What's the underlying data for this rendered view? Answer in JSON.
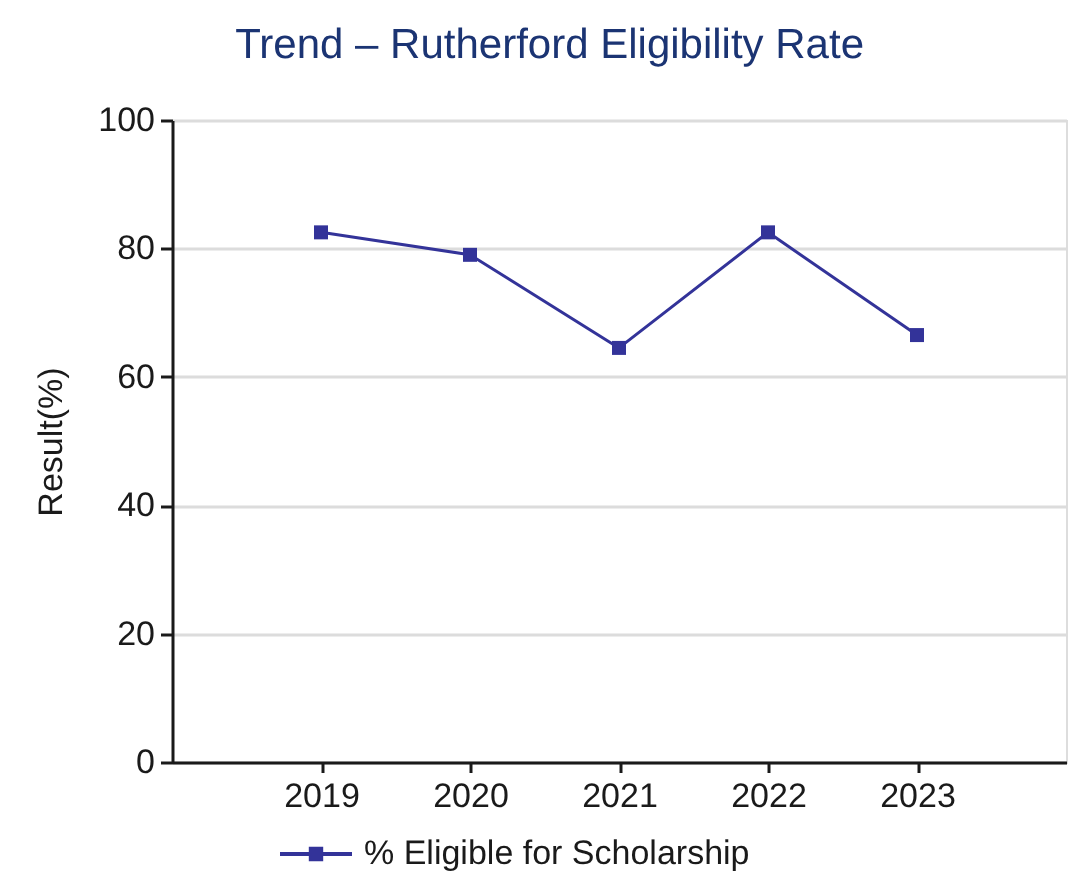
{
  "chart_data": {
    "type": "line",
    "title": "Trend – Rutherford Eligibility Rate",
    "ylabel": "Result(%)",
    "categories": [
      "2019",
      "2020",
      "2021",
      "2022",
      "2023"
    ],
    "series": [
      {
        "name": "% Eligible for Scholarship",
        "color": "#333399",
        "values": [
          82.5,
          79,
          64.5,
          82.5,
          66.5
        ]
      }
    ],
    "ylim": [
      0,
      100
    ],
    "yticks": [
      0,
      20,
      40,
      60,
      80,
      100
    ],
    "grid": "y",
    "legend": "bottom",
    "marker": "square",
    "line_style": "solid"
  }
}
